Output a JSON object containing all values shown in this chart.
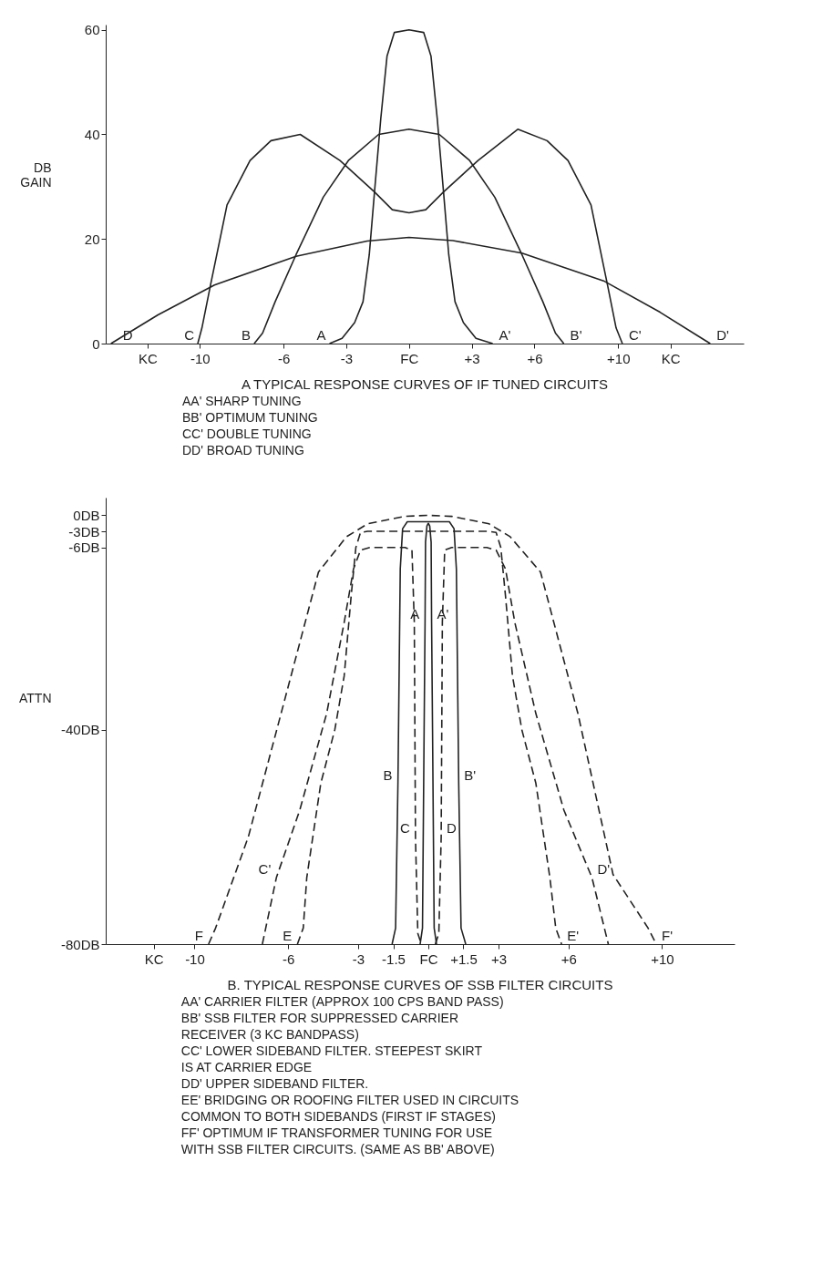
{
  "chart_data": [
    {
      "type": "line",
      "title": "A TYPICAL RESPONSE CURVES OF IF TUNED CIRCUITS",
      "ylabel": "DB GAIN",
      "xlim": [
        -14.5,
        16
      ],
      "ylim": [
        0,
        61
      ],
      "xticks": [
        {
          "value": -12.5,
          "label": "KC"
        },
        {
          "value": -10,
          "label": "-10"
        },
        -6,
        -3,
        {
          "value": 0,
          "label": "FC"
        },
        {
          "value": 3,
          "label": "+3"
        },
        {
          "value": 6,
          "label": "+6"
        },
        {
          "value": 10,
          "label": "+10"
        },
        {
          "value": 12.5,
          "label": "KC"
        }
      ],
      "yticks": [
        0,
        20,
        40,
        60
      ],
      "series": [
        {
          "color": "#222222",
          "line_style": "solid",
          "x": [
            -3.8,
            -3.2,
            -2.6,
            -2.2,
            -1.9,
            -1.65,
            -1.35,
            -1.05,
            -0.7,
            0,
            0.7,
            1.05,
            1.35,
            1.65,
            1.9,
            2.2,
            2.6,
            3.2,
            4.0
          ],
          "values": [
            0,
            1,
            4,
            8,
            17,
            29,
            43,
            55,
            59.5,
            60,
            59.5,
            55,
            43,
            29,
            17,
            8,
            4,
            1,
            0
          ]
        },
        {
          "color": "#222222",
          "line_style": "solid",
          "x": [
            -7.4,
            -7.0,
            -6.4,
            -5.4,
            -4.1,
            -2.9,
            -1.45,
            0,
            1.45,
            2.9,
            4.1,
            5.4,
            6.4,
            7.0,
            7.4
          ],
          "values": [
            0,
            2,
            8,
            17,
            28,
            35,
            40,
            41,
            40,
            35,
            28,
            17,
            8,
            2,
            0
          ]
        },
        {
          "color": "#222222",
          "line_style": "solid",
          "x": [
            -10.1,
            -9.9,
            -9.5,
            -8.7,
            -7.6,
            -6.6,
            -5.2,
            -3.3,
            -1.65,
            -0.8,
            0,
            0.8,
            1.65,
            3.3,
            5.2,
            6.6,
            7.6,
            8.7,
            9.5,
            9.9,
            10.2
          ],
          "values": [
            0,
            3,
            11,
            26.5,
            35,
            38.8,
            40,
            35,
            29,
            25.6,
            25,
            25.6,
            29,
            35,
            41,
            38.8,
            35,
            26.5,
            11,
            3,
            0
          ]
        },
        {
          "color": "#222222",
          "line_style": "solid",
          "x": [
            -14.25,
            -12,
            -9.3,
            -5.4,
            -2,
            0,
            2.1,
            5.4,
            9.3,
            12,
            14.4
          ],
          "values": [
            0,
            5.5,
            11.2,
            16.7,
            19.6,
            20.3,
            19.7,
            17.3,
            12,
            6,
            0
          ]
        }
      ],
      "annotations": [
        {
          "text": "D",
          "x": -14.25,
          "y": 0
        },
        {
          "text": "C",
          "x": -10.1,
          "y": 0
        },
        {
          "text": "B",
          "x": -7.4,
          "y": 0
        },
        {
          "text": "A",
          "x": -3.8,
          "y": 0
        },
        {
          "text": "A'",
          "x": 4.0,
          "y": 0
        },
        {
          "text": "B'",
          "x": 7.4,
          "y": 0
        },
        {
          "text": "C'",
          "x": 10.2,
          "y": 0
        },
        {
          "text": "D'",
          "x": 14.4,
          "y": 0
        },
        "AA' SHARP TUNING",
        "BB' OPTIMUM TUNING",
        "CC' DOUBLE TUNING",
        "DD' BROAD TUNING"
      ]
    },
    {
      "type": "line",
      "title": "B. TYPICAL RESPONSE CURVES OF SSB FILTER CIRCUITS",
      "ylabel": "ATTN",
      "xlim": [
        -13.8,
        13.1
      ],
      "ylim": [
        -80,
        3.3
      ],
      "xticks": [
        {
          "value": -11.75,
          "label": "KC"
        },
        -10,
        -6,
        -3,
        -1.5,
        {
          "value": 0,
          "label": "FC"
        },
        {
          "value": 1.5,
          "label": "+1.5"
        },
        {
          "value": 3,
          "label": "+3"
        },
        {
          "value": 6,
          "label": "+6"
        },
        {
          "value": 10,
          "label": "+10"
        }
      ],
      "yticks": [
        {
          "value": 0,
          "label": "0DB"
        },
        {
          "value": -3,
          "label": "-3DB"
        },
        {
          "value": -6,
          "label": "-6DB"
        },
        {
          "value": -40,
          "label": "-40DB"
        },
        {
          "value": -80,
          "label": "-80DB"
        }
      ],
      "series": [
        {
          "color": "#222222",
          "line_style": "solid",
          "x": [
            -0.35,
            -0.25,
            -0.18,
            -0.14,
            -0.12,
            -0.06,
            0,
            0.06,
            0.12,
            0.14,
            0.18,
            0.25,
            0.35
          ],
          "values": [
            -80,
            -77,
            -40,
            -20,
            -5,
            -2,
            -1.5,
            -2,
            -5,
            -20,
            -40,
            -77,
            -80
          ]
        },
        {
          "color": "#222222",
          "line_style": "solid",
          "x": [
            -1.55,
            -1.4,
            -1.3,
            -1.2,
            -1.1,
            -0.9,
            0.9,
            1.1,
            1.2,
            1.3,
            1.4,
            1.6
          ],
          "values": [
            -80,
            -77,
            -50,
            -10,
            -2.5,
            -1.2,
            -1.2,
            -2.5,
            -10,
            -50,
            -77,
            -80
          ]
        },
        {
          "color": "#222222",
          "line_style": "dashed",
          "x": [
            -7.1,
            -6.5,
            -5.5,
            -4.35,
            -3.6,
            -3.2,
            -2.9,
            -2.5,
            -1.0,
            -0.7,
            -0.6,
            -0.55,
            -0.45,
            -0.3
          ],
          "values": [
            -80,
            -67.6,
            -55,
            -37,
            -20,
            -10,
            -6.5,
            -6,
            -6,
            -6.5,
            -20,
            -60,
            -78,
            -80
          ]
        },
        {
          "color": "#222222",
          "line_style": "dashed",
          "x": [
            0.3,
            0.45,
            0.55,
            0.6,
            0.7,
            1.0,
            2.5,
            2.9,
            3.3,
            3.7,
            4.6,
            5.8,
            7.0,
            7.7
          ],
          "values": [
            -80,
            -78,
            -60,
            -20,
            -6.5,
            -6,
            -6,
            -6.5,
            -10,
            -20,
            -37,
            -55,
            -67.6,
            -80
          ]
        },
        {
          "color": "#222222",
          "line_style": "dashed",
          "x": [
            -5.6,
            -5.35,
            -5.2,
            -4.6,
            -4.0,
            -3.6,
            -3.3,
            -3.1,
            -2.9,
            -2.6,
            2.6,
            2.9,
            3.1,
            3.3,
            3.6,
            4.0,
            4.6,
            5.2,
            5.45,
            5.7
          ],
          "values": [
            -80,
            -77,
            -67.6,
            -50,
            -40,
            -30,
            -15,
            -6,
            -3.2,
            -3,
            -3,
            -3.2,
            -6,
            -15,
            -30,
            -40,
            -50,
            -67.6,
            -77,
            -80
          ]
        },
        {
          "color": "#222222",
          "line_style": "dashed",
          "x": [
            -9.4,
            -9.1,
            -7.7,
            -6.3,
            -4.7,
            -3.5,
            -2.6,
            -1,
            0,
            1,
            2.6,
            3.5,
            4.8,
            6.4,
            7.9,
            9.4,
            9.75
          ],
          "values": [
            -80,
            -77,
            -60,
            -37,
            -10.6,
            -4,
            -1.6,
            -0.2,
            0,
            -0.2,
            -1.6,
            -4,
            -10.6,
            -37,
            -67,
            -77,
            -80
          ]
        }
      ],
      "annotations": [
        {
          "text": "A",
          "x": -0.14,
          "y": -20
        },
        {
          "text": "A'",
          "x": 0.14,
          "y": -20
        },
        {
          "text": "F",
          "x": -9.4,
          "y": -80
        },
        {
          "text": "C'",
          "x": -6.5,
          "y": -67.6
        },
        {
          "text": "E",
          "x": -5.6,
          "y": -80
        },
        {
          "text": "B",
          "x": -1.3,
          "y": -50
        },
        {
          "text": "C",
          "x": -0.55,
          "y": -60
        },
        {
          "text": "D",
          "x": 0.55,
          "y": -60
        },
        {
          "text": "B'",
          "x": 1.3,
          "y": -50
        },
        {
          "text": "E'",
          "x": 5.7,
          "y": -80
        },
        {
          "text": "D'",
          "x": 7.0,
          "y": -67.6
        },
        {
          "text": "F'",
          "x": 9.75,
          "y": -80
        },
        "AA' CARRIER FILTER (APPROX 100 CPS BAND PASS)",
        "BB' SSB FILTER FOR SUPPRESSED CARRIER\n      RECEIVER (3 KC BANDPASS)",
        "CC' LOWER SIDEBAND FILTER. STEEPEST SKIRT\n      IS AT CARRIER EDGE",
        "DD' UPPER SIDEBAND FILTER.",
        "EE' BRIDGING OR ROOFING FILTER USED IN CIRCUITS\n      COMMON TO BOTH SIDEBANDS (FIRST IF STAGES)",
        "FF' OPTIMUM IF TRANSFORMER TUNING FOR USE\n      WITH SSB FILTER CIRCUITS. (SAME AS BB' ABOVE)"
      ]
    }
  ]
}
